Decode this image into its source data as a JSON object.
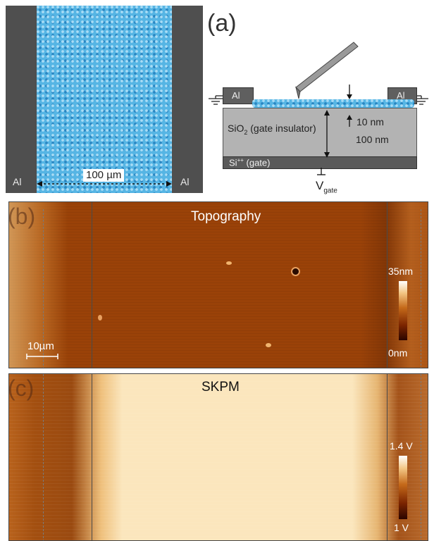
{
  "schematic": {
    "left_electrode_label": "Al",
    "right_electrode_label": "Al",
    "channel_length_label": "100 µm"
  },
  "cross_section": {
    "panel_label": "(a)",
    "left_contact_label": "Al",
    "right_contact_label": "Al",
    "film_thickness_label": "10 nm",
    "oxide_label_main": "SiO",
    "oxide_label_sub": "2",
    "oxide_label_rest": " (gate insulator)",
    "oxide_thickness_label": "100 nm",
    "gate_label_main": "Si",
    "gate_label_sup": "++",
    "gate_label_rest": " (gate)",
    "vgate_main": "V",
    "vgate_sub": "gate"
  },
  "panel_b": {
    "label": "(b)",
    "title": "Topography",
    "scale_bar_label": "10µm",
    "colorbar_max": "35nm",
    "colorbar_min": "0nm"
  },
  "panel_c": {
    "label": "(c)",
    "title": "SKPM",
    "colorbar_max": "1.4 V",
    "colorbar_min": "1 V"
  },
  "colors": {
    "electrode": "#4f4f4f",
    "film": "#56b5e4",
    "oxide": "#b3b3b3",
    "gate": "#5a5a5a",
    "afm_dark": "#9a4208",
    "afm_light": "#fbe6bd"
  }
}
